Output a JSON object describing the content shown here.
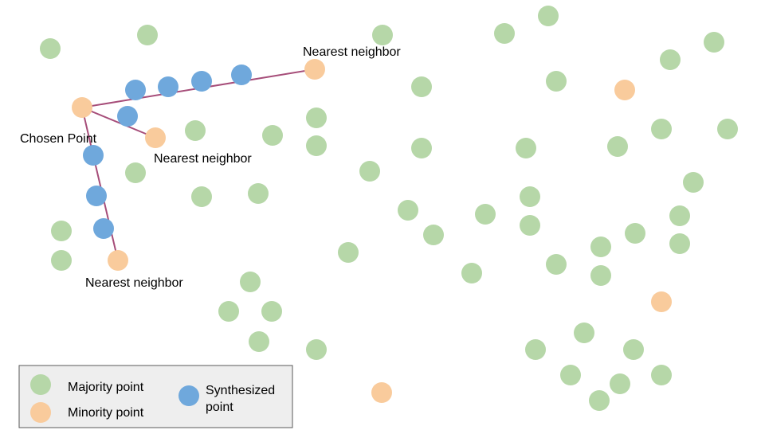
{
  "labels": {
    "chosen_point": "Chosen Point",
    "nearest_neighbor_top": "Nearest neighbor",
    "nearest_neighbor_middle": "Nearest neighbor",
    "nearest_neighbor_bottom": "Nearest neighbor"
  },
  "legend": {
    "majority": "Majority point",
    "minority": "Minority point",
    "synthesized_line1": "Synthesized",
    "synthesized_line2": "point"
  },
  "colors": {
    "majority": "#b6d7a8",
    "minority": "#f9cb9c",
    "synthesized": "#6fa8dc",
    "line": "#a64d79",
    "legend_bg": "#eeeeee",
    "legend_border": "#595959"
  }
}
